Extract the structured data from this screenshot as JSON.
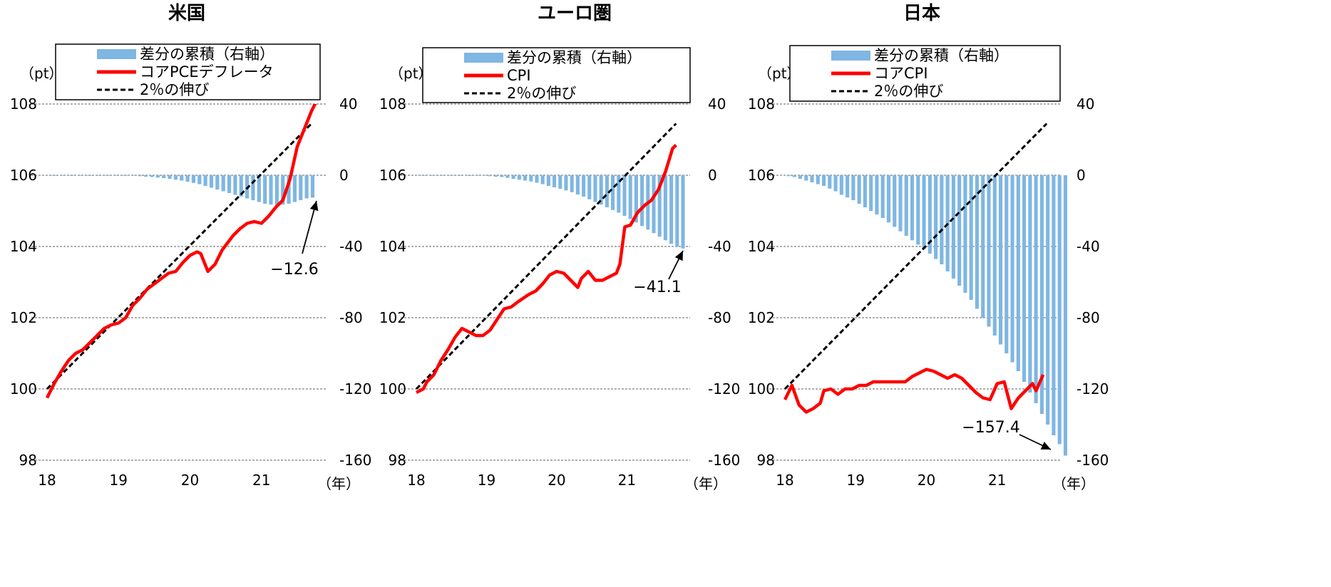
{
  "chart_data": [
    {
      "type": "bar+line",
      "title": "米国",
      "left_unit": "（pt）",
      "x_unit": "（年）",
      "x_ticks": [
        "18",
        "19",
        "20",
        "21"
      ],
      "x_range": [
        2018.0,
        2021.9
      ],
      "left_axis": {
        "ticks": [
          "108",
          "106",
          "104",
          "102",
          "100",
          "98"
        ],
        "range": [
          98,
          108
        ]
      },
      "right_axis": {
        "ticks": [
          "40",
          "0",
          "-40",
          "-80",
          "-120",
          "-160"
        ],
        "range": [
          -160,
          40
        ]
      },
      "grid": "horizontal dashed",
      "legend": [
        {
          "label": "差分の累積（右軸）",
          "kind": "bar",
          "color": "#7fb6e2"
        },
        {
          "label": "コアPCEデフレータ",
          "kind": "line",
          "color": "#ff0000"
        },
        {
          "label": "2％の伸び",
          "kind": "dashed",
          "color": "#000000"
        }
      ],
      "annotation": "−12.6",
      "series": [
        {
          "name": "差分の累積（右軸）",
          "kind": "bar",
          "axis": "right",
          "x_start": 2018.05,
          "x_step": 0.0833,
          "values": [
            0,
            0,
            0,
            0,
            0,
            0,
            0,
            0,
            0,
            0,
            0,
            0,
            0,
            0,
            -0.3,
            -0.5,
            -0.8,
            -1,
            -1.3,
            -1.6,
            -2,
            -2.5,
            -3,
            -3.6,
            -4.3,
            -5,
            -6,
            -7,
            -8,
            -9,
            -10,
            -11,
            -12,
            -13,
            -14,
            -15,
            -16,
            -16.5,
            -16.8,
            -16.5,
            -16,
            -15,
            -14,
            -13,
            -12.6
          ]
        },
        {
          "name": "コアPCEデフレータ",
          "kind": "line",
          "axis": "left",
          "points": [
            [
              2018,
              99.75
            ],
            [
              2018.1,
              100.15
            ],
            [
              2018.2,
              100.5
            ],
            [
              2018.3,
              100.8
            ],
            [
              2018.4,
              101.0
            ],
            [
              2018.5,
              101.1
            ],
            [
              2018.6,
              101.3
            ],
            [
              2018.7,
              101.5
            ],
            [
              2018.8,
              101.7
            ],
            [
              2018.9,
              101.8
            ],
            [
              2019.0,
              101.85
            ],
            [
              2019.1,
              102.0
            ],
            [
              2019.2,
              102.35
            ],
            [
              2019.3,
              102.55
            ],
            [
              2019.4,
              102.8
            ],
            [
              2019.5,
              102.95
            ],
            [
              2019.6,
              103.1
            ],
            [
              2019.7,
              103.25
            ],
            [
              2019.8,
              103.3
            ],
            [
              2019.9,
              103.55
            ],
            [
              2020.0,
              103.75
            ],
            [
              2020.1,
              103.85
            ],
            [
              2020.15,
              103.8
            ],
            [
              2020.25,
              103.3
            ],
            [
              2020.35,
              103.5
            ],
            [
              2020.45,
              103.9
            ],
            [
              2020.6,
              104.3
            ],
            [
              2020.7,
              104.5
            ],
            [
              2020.8,
              104.65
            ],
            [
              2020.9,
              104.7
            ],
            [
              2021.0,
              104.65
            ],
            [
              2021.1,
              104.85
            ],
            [
              2021.2,
              105.1
            ],
            [
              2021.3,
              105.3
            ],
            [
              2021.4,
              105.9
            ],
            [
              2021.5,
              106.8
            ],
            [
              2021.6,
              107.3
            ],
            [
              2021.7,
              107.8
            ],
            [
              2021.8,
              108.2
            ]
          ]
        },
        {
          "name": "2％の伸び",
          "kind": "dashed",
          "axis": "left",
          "points": [
            [
              2018.0,
              100.0
            ],
            [
              2021.7,
              107.45
            ]
          ]
        }
      ]
    },
    {
      "type": "bar+line",
      "title": "ユーロ圏",
      "left_unit": "（pt）",
      "x_unit": "（年）",
      "x_ticks": [
        "18",
        "19",
        "20",
        "21"
      ],
      "x_range": [
        2018.0,
        2021.9
      ],
      "left_axis": {
        "ticks": [
          "108",
          "106",
          "104",
          "102",
          "100",
          "98"
        ],
        "range": [
          98,
          108
        ]
      },
      "right_axis": {
        "ticks": [
          "40",
          "0",
          "-40",
          "-80",
          "-120",
          "-160"
        ],
        "range": [
          -160,
          40
        ]
      },
      "grid": "horizontal dashed",
      "legend": [
        {
          "label": "差分の累積（右軸）",
          "kind": "bar",
          "color": "#7fb6e2"
        },
        {
          "label": "CPI",
          "kind": "line",
          "color": "#ff0000"
        },
        {
          "label": "2％の伸び",
          "kind": "dashed",
          "color": "#000000"
        }
      ],
      "annotation": "−41.1",
      "series": [
        {
          "name": "差分の累積（右軸）",
          "kind": "bar",
          "axis": "right",
          "x_start": 2018.05,
          "x_step": 0.0833,
          "values": [
            0,
            0,
            0,
            0,
            0,
            0,
            0,
            0,
            0,
            0,
            0,
            -0.3,
            -0.5,
            -0.8,
            -1,
            -1.5,
            -2,
            -2.5,
            -3,
            -3.5,
            -4.2,
            -5,
            -6,
            -6.8,
            -7.6,
            -8.5,
            -9.5,
            -10.8,
            -12,
            -13.5,
            -15,
            -16.5,
            -18,
            -19.5,
            -21,
            -22.8,
            -24.5,
            -26.5,
            -28.5,
            -30.5,
            -32.5,
            -34.5,
            -36.5,
            -38.5,
            -40,
            -41.1
          ]
        },
        {
          "name": "CPI",
          "kind": "line",
          "axis": "left",
          "points": [
            [
              2018,
              99.9
            ],
            [
              2018.1,
              100.0
            ],
            [
              2018.15,
              100.2
            ],
            [
              2018.25,
              100.4
            ],
            [
              2018.35,
              100.8
            ],
            [
              2018.45,
              101.1
            ],
            [
              2018.55,
              101.45
            ],
            [
              2018.65,
              101.7
            ],
            [
              2018.75,
              101.6
            ],
            [
              2018.85,
              101.5
            ],
            [
              2018.95,
              101.5
            ],
            [
              2019.05,
              101.65
            ],
            [
              2019.15,
              101.95
            ],
            [
              2019.25,
              102.25
            ],
            [
              2019.35,
              102.3
            ],
            [
              2019.45,
              102.45
            ],
            [
              2019.6,
              102.65
            ],
            [
              2019.7,
              102.75
            ],
            [
              2019.8,
              102.95
            ],
            [
              2019.9,
              103.2
            ],
            [
              2020.0,
              103.3
            ],
            [
              2020.1,
              103.25
            ],
            [
              2020.2,
              103.05
            ],
            [
              2020.3,
              102.85
            ],
            [
              2020.35,
              103.1
            ],
            [
              2020.45,
              103.3
            ],
            [
              2020.55,
              103.05
            ],
            [
              2020.65,
              103.05
            ],
            [
              2020.75,
              103.15
            ],
            [
              2020.85,
              103.25
            ],
            [
              2020.9,
              103.5
            ],
            [
              2020.97,
              104.55
            ],
            [
              2021.05,
              104.6
            ],
            [
              2021.15,
              104.95
            ],
            [
              2021.25,
              105.15
            ],
            [
              2021.35,
              105.3
            ],
            [
              2021.45,
              105.6
            ],
            [
              2021.55,
              106.1
            ],
            [
              2021.65,
              106.75
            ],
            [
              2021.7,
              106.85
            ]
          ]
        },
        {
          "name": "2％の伸び",
          "kind": "dashed",
          "axis": "left",
          "points": [
            [
              2018.0,
              100.0
            ],
            [
              2021.7,
              107.45
            ]
          ]
        }
      ]
    },
    {
      "type": "bar+line",
      "title": "日本",
      "left_unit": "（pt）",
      "x_unit": "（年）",
      "x_ticks": [
        "18",
        "19",
        "20",
        "21"
      ],
      "x_range": [
        2018.0,
        2021.9
      ],
      "left_axis": {
        "ticks": [
          "108",
          "106",
          "104",
          "102",
          "100",
          "98"
        ],
        "range": [
          98,
          108
        ]
      },
      "right_axis": {
        "ticks": [
          "40",
          "0",
          "-40",
          "-80",
          "-120",
          "-160"
        ],
        "range": [
          -160,
          40
        ]
      },
      "grid": "horizontal dashed",
      "legend": [
        {
          "label": "差分の累積（右軸）",
          "kind": "bar",
          "color": "#7fb6e2"
        },
        {
          "label": "コアCPI",
          "kind": "line",
          "color": "#ff0000"
        },
        {
          "label": "2％の伸び",
          "kind": "dashed",
          "color": "#000000"
        }
      ],
      "annotation": "−157.4",
      "series": [
        {
          "name": "差分の累積（右軸）",
          "kind": "bar",
          "axis": "right",
          "x_start": 2018.05,
          "x_step": 0.0833,
          "values": [
            -0.5,
            -1,
            -2,
            -3,
            -4,
            -5,
            -6,
            -7.5,
            -9,
            -11,
            -12.5,
            -14,
            -16,
            -18,
            -20,
            -22,
            -24,
            -26.5,
            -29,
            -31.5,
            -34,
            -36.5,
            -39,
            -41.5,
            -44,
            -47,
            -50,
            -54,
            -58,
            -62,
            -66,
            -70,
            -75,
            -80,
            -85,
            -90,
            -95,
            -100,
            -105,
            -110,
            -116,
            -122,
            -128,
            -134,
            -140,
            -146,
            -151,
            -157.4
          ]
        },
        {
          "name": "コアCPI",
          "kind": "line",
          "axis": "left",
          "points": [
            [
              2018,
              99.7
            ],
            [
              2018.1,
              100.1
            ],
            [
              2018.2,
              99.55
            ],
            [
              2018.3,
              99.35
            ],
            [
              2018.4,
              99.45
            ],
            [
              2018.5,
              99.6
            ],
            [
              2018.55,
              99.95
            ],
            [
              2018.65,
              100.0
            ],
            [
              2018.75,
              99.85
            ],
            [
              2018.85,
              100.0
            ],
            [
              2018.95,
              100.0
            ],
            [
              2019.05,
              100.1
            ],
            [
              2019.15,
              100.1
            ],
            [
              2019.25,
              100.2
            ],
            [
              2019.35,
              100.2
            ],
            [
              2019.45,
              100.2
            ],
            [
              2019.6,
              100.2
            ],
            [
              2019.7,
              100.2
            ],
            [
              2019.8,
              100.35
            ],
            [
              2019.9,
              100.45
            ],
            [
              2020.0,
              100.55
            ],
            [
              2020.1,
              100.5
            ],
            [
              2020.2,
              100.4
            ],
            [
              2020.3,
              100.3
            ],
            [
              2020.4,
              100.4
            ],
            [
              2020.5,
              100.3
            ],
            [
              2020.6,
              100.1
            ],
            [
              2020.7,
              99.9
            ],
            [
              2020.8,
              99.75
            ],
            [
              2020.9,
              99.7
            ],
            [
              2021.0,
              100.15
            ],
            [
              2021.1,
              100.2
            ],
            [
              2021.2,
              99.45
            ],
            [
              2021.3,
              99.75
            ],
            [
              2021.4,
              99.95
            ],
            [
              2021.5,
              100.15
            ],
            [
              2021.55,
              99.95
            ],
            [
              2021.65,
              100.4
            ]
          ]
        },
        {
          "name": "2％の伸び",
          "kind": "dashed",
          "axis": "left",
          "points": [
            [
              2018.0,
              100.0
            ],
            [
              2021.7,
              107.45
            ]
          ]
        }
      ]
    }
  ]
}
